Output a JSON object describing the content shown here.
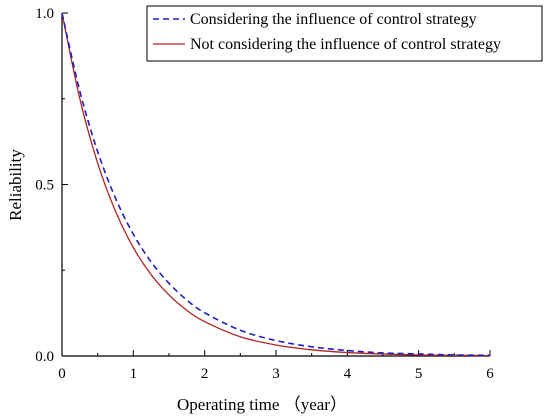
{
  "chart_data": {
    "type": "line",
    "xlabel": "Operating time （year）",
    "ylabel": "Reliability",
    "xlim": [
      0,
      6
    ],
    "ylim": [
      0,
      1
    ],
    "x_ticks": [
      "0",
      "1",
      "2",
      "3",
      "4",
      "5",
      "6"
    ],
    "y_ticks": [
      "0.0",
      "0.5",
      "1.0"
    ],
    "grid": false,
    "legend_position": "top-right",
    "series": [
      {
        "name": "Considering the influence of control strategy",
        "style": "dashed",
        "color": "#1f1fbf",
        "x": [
          0,
          0.25,
          0.5,
          0.75,
          1,
          1.25,
          1.5,
          1.75,
          2,
          2.5,
          3,
          3.5,
          4,
          4.5,
          5,
          5.5,
          6
        ],
        "y": [
          1.0,
          0.772,
          0.596,
          0.46,
          0.355,
          0.274,
          0.212,
          0.163,
          0.126,
          0.075,
          0.045,
          0.027,
          0.016,
          0.009,
          0.006,
          0.003,
          0.002
        ]
      },
      {
        "name": "Not considering the influence of control strategy",
        "style": "solid",
        "color": "#b22222",
        "x": [
          0,
          0.25,
          0.5,
          0.75,
          1,
          1.25,
          1.5,
          1.75,
          2,
          2.5,
          3,
          3.5,
          4,
          4.5,
          5,
          5.5,
          6
        ],
        "y": [
          1.0,
          0.75,
          0.562,
          0.422,
          0.316,
          0.237,
          0.178,
          0.133,
          0.1,
          0.056,
          0.032,
          0.018,
          0.01,
          0.006,
          0.003,
          0.002,
          0.001
        ]
      }
    ]
  }
}
